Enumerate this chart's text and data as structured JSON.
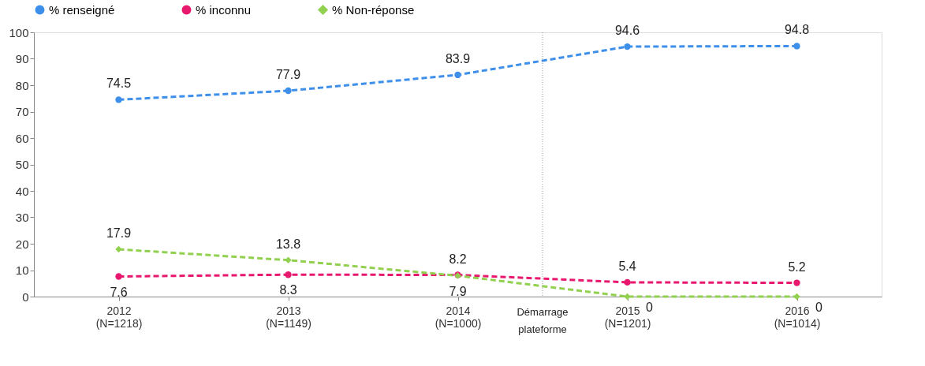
{
  "chart_data": {
    "type": "line",
    "categories": [
      "2012 (N=1218)",
      "2013 (N=1149)",
      "2014 (N=1000)",
      "2015 (N=1201)",
      "2016 (N=1014)"
    ],
    "series": [
      {
        "name": "% renseigné",
        "color": "#3d8fea",
        "marker": "circle",
        "values": [
          74.5,
          77.9,
          83.9,
          94.6,
          94.8
        ]
      },
      {
        "name": "% inconnu",
        "color": "#e8186f",
        "marker": "circle",
        "values": [
          7.6,
          8.3,
          8.2,
          5.4,
          5.2
        ]
      },
      {
        "name": "% Non-réponse",
        "color": "#92d050",
        "marker": "diamond",
        "values": [
          17.9,
          13.8,
          7.9,
          0,
          0
        ]
      }
    ],
    "ylim": [
      0,
      100
    ],
    "yticks": [
      0,
      10,
      20,
      30,
      40,
      50,
      60,
      70,
      80,
      90,
      100
    ],
    "annotations": [
      "Démarrage plateforme"
    ],
    "data_labels": true,
    "grid": false,
    "legend": "top",
    "line_style": "dashed"
  }
}
